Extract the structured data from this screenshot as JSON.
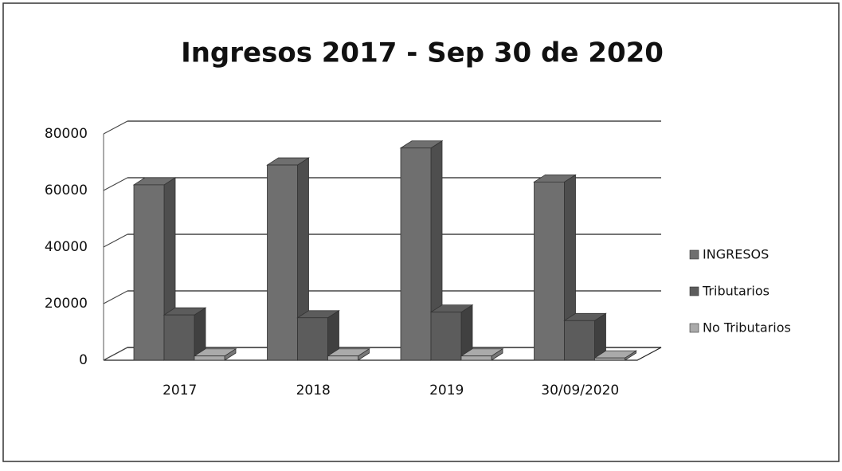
{
  "chart_data": {
    "type": "bar3d",
    "title": "Ingresos 2017 - Sep 30 de 2020",
    "categories": [
      "2017",
      "2018",
      "2019",
      "30/09/2020"
    ],
    "series": [
      {
        "name": "INGRESOS",
        "color": "#6f6f6f",
        "values": [
          62000,
          69000,
          75000,
          63000
        ]
      },
      {
        "name": "Tributarios",
        "color": "#5c5c5c",
        "values": [
          16000,
          15000,
          17000,
          14000
        ]
      },
      {
        "name": "No Tributarios",
        "color": "#aaaaaa",
        "values": [
          1500,
          1500,
          1500,
          800
        ]
      }
    ],
    "ylim": [
      0,
      80000
    ],
    "yticks": [
      0,
      20000,
      40000,
      60000,
      80000
    ],
    "grid": true
  }
}
